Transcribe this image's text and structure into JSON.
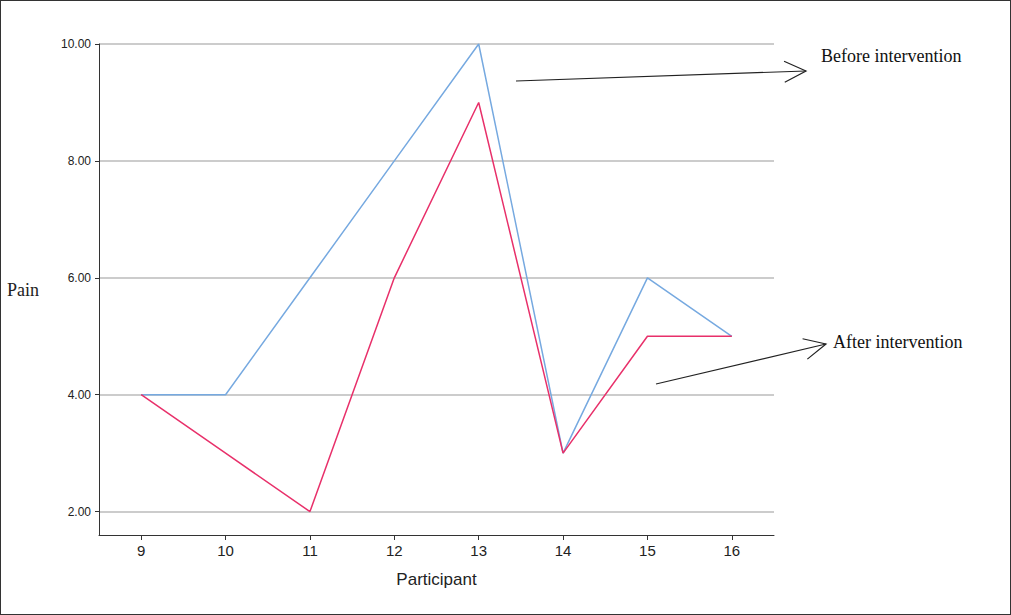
{
  "chart_data": {
    "type": "line",
    "x_label": "Participant",
    "y_label": "Pain",
    "categories": [
      "9",
      "10",
      "11",
      "12",
      "13",
      "14",
      "15",
      "16"
    ],
    "series": [
      {
        "name": "Before intervention",
        "color": "#76a9e0",
        "values": [
          4,
          4,
          6,
          8,
          10,
          3,
          6,
          5
        ]
      },
      {
        "name": "After intervention",
        "color": "#e8306a",
        "values": [
          4,
          3,
          2,
          6,
          9,
          3,
          5,
          5
        ]
      }
    ],
    "ylim": [
      1.6,
      10
    ],
    "yticks": [
      {
        "value": 2,
        "label": "2.00"
      },
      {
        "value": 4,
        "label": "4.00"
      },
      {
        "value": 6,
        "label": "6.00"
      },
      {
        "value": 8,
        "label": "8.00"
      },
      {
        "value": 10,
        "label": "10.00"
      }
    ],
    "grid": true
  }
}
